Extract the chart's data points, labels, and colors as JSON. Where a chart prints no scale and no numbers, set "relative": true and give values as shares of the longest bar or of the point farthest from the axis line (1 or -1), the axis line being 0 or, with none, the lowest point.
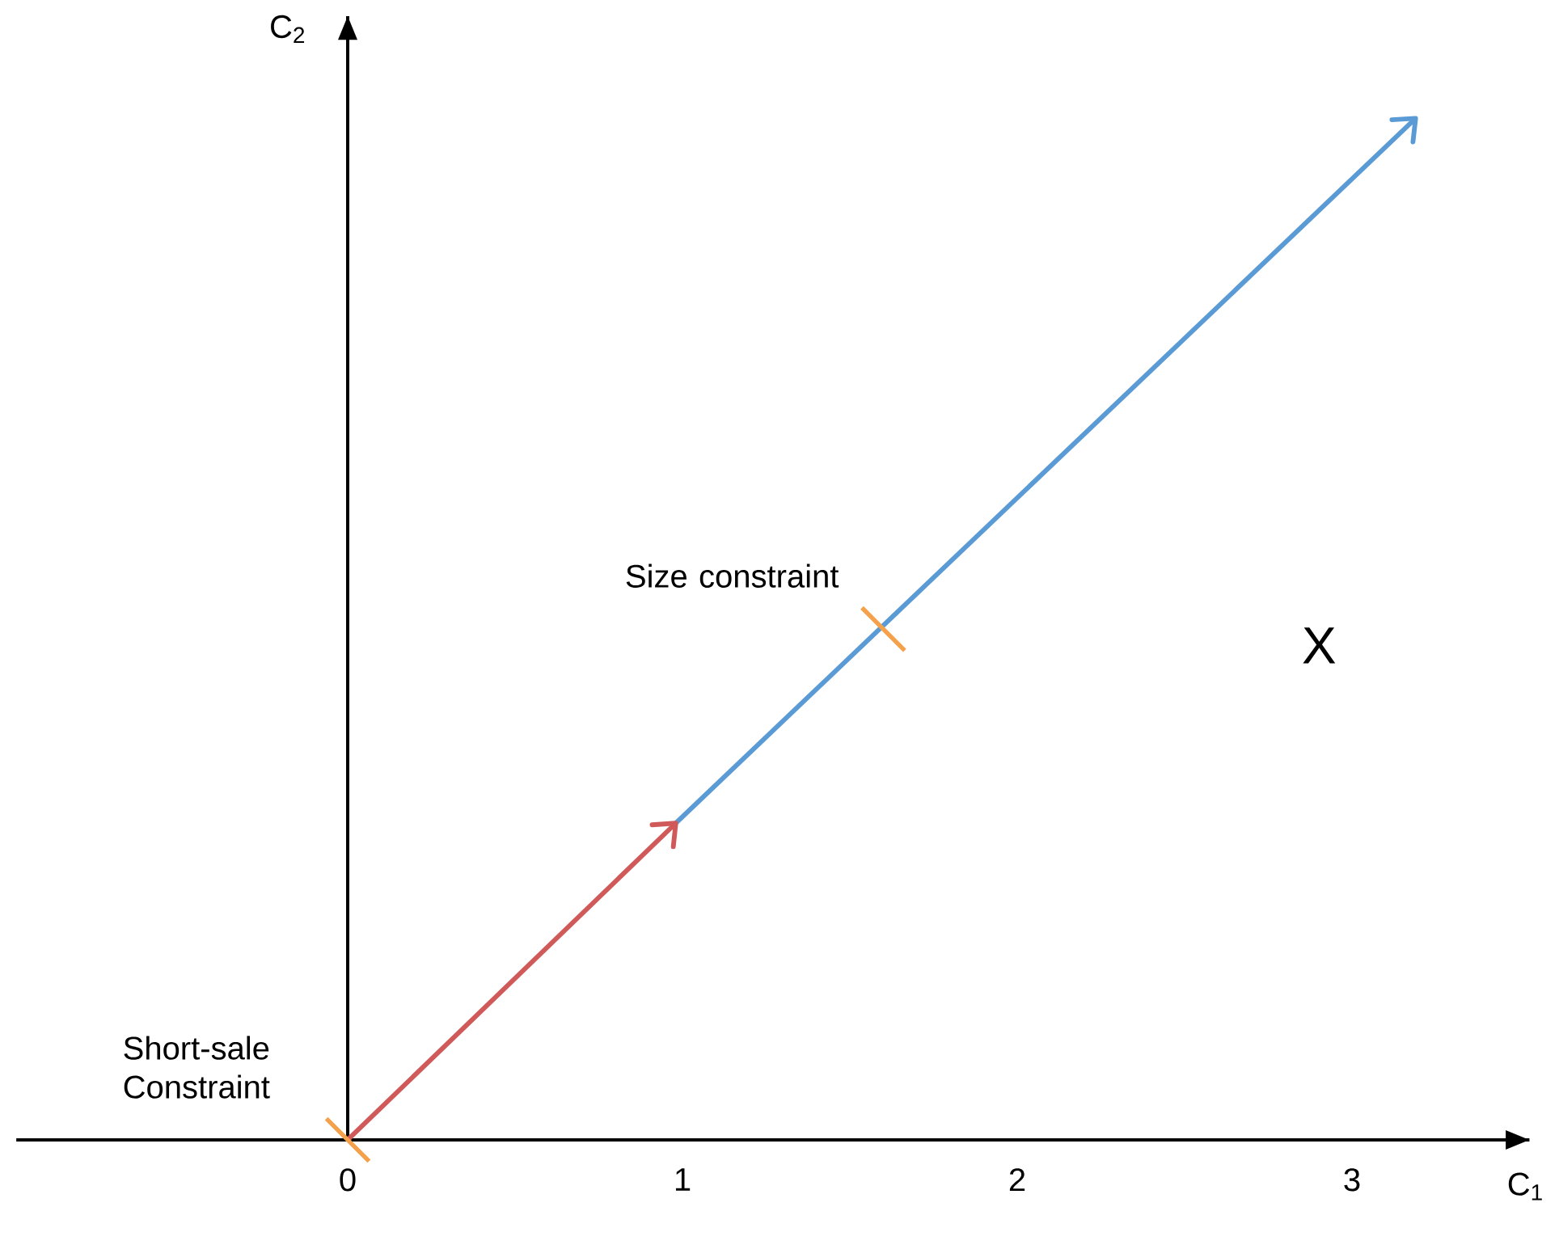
{
  "chart_data": {
    "type": "line",
    "relative": true,
    "xlabel": "C$_{1}$",
    "ylabel": "C$_{2}$",
    "xlim": [
      -0.99,
      3.53
    ],
    "xticks": [
      0,
      1,
      2,
      3
    ],
    "series": [
      {
        "color": "#d05a5a",
        "x": [
          0,
          0.98
        ],
        "values": [
          0,
          0.31
        ]
      },
      {
        "color": "#5b9bd5",
        "x": [
          0.98,
          3.19
        ],
        "values": [
          0.31,
          1
        ]
      }
    ],
    "annotations": [
      {
        "text": "Short-sale Constraint",
        "x": 0,
        "y": 0
      },
      {
        "text": "Size constraint",
        "x": 1.6,
        "y": 0.5
      },
      "X"
    ]
  }
}
